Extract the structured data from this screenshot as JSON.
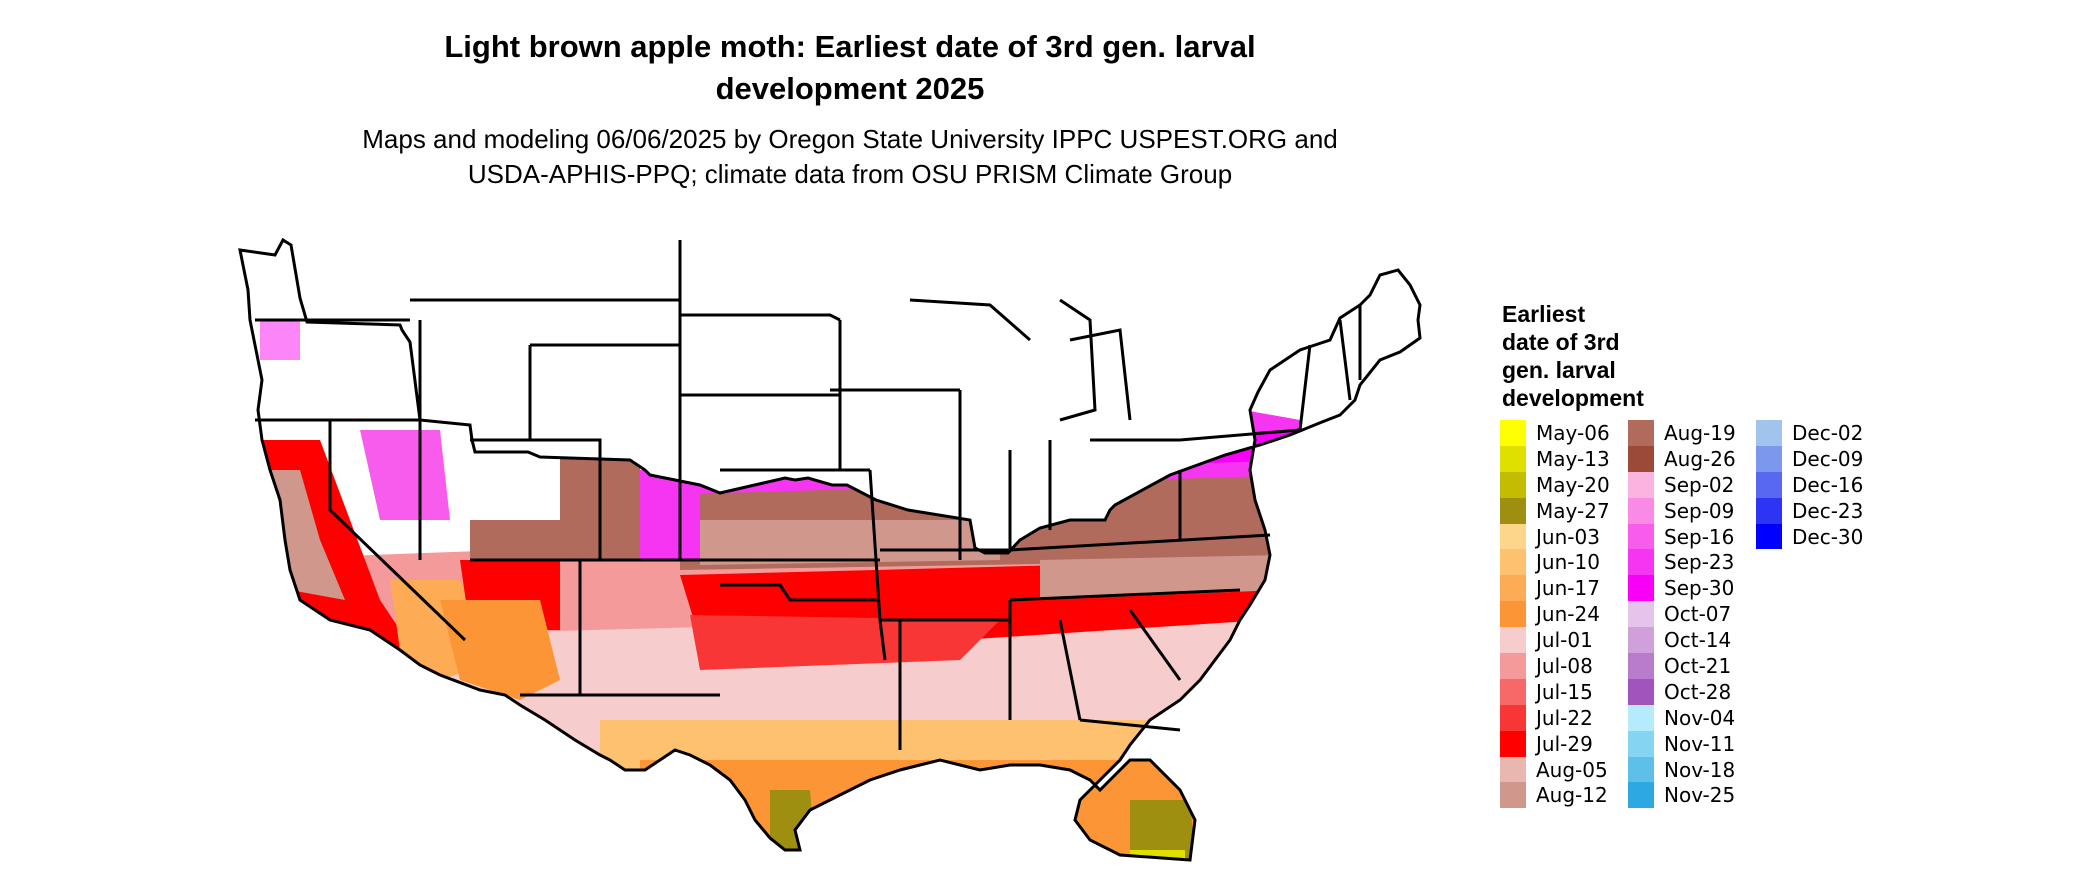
{
  "title_line1": "Light brown apple moth: Earliest date of 3rd gen. larval",
  "title_line2": "development 2025",
  "subtitle_line1": "Maps and modeling 06/06/2025 by Oregon State University IPPC USPEST.ORG and",
  "subtitle_line2": "USDA-APHIS-PPQ; climate data from OSU PRISM Climate Group",
  "legend": {
    "title_lines": [
      "Earliest",
      "date of 3rd",
      "gen. larval",
      "development"
    ],
    "columns": [
      [
        {
          "label": "May-06",
          "color": "#ffff00"
        },
        {
          "label": "May-13",
          "color": "#e0e000"
        },
        {
          "label": "May-20",
          "color": "#c4bc00"
        },
        {
          "label": "May-27",
          "color": "#9e8f10"
        },
        {
          "label": "Jun-03",
          "color": "#fdd68c"
        },
        {
          "label": "Jun-10",
          "color": "#fdc170"
        },
        {
          "label": "Jun-17",
          "color": "#fdab55"
        },
        {
          "label": "Jun-24",
          "color": "#fb9535"
        },
        {
          "label": "Jul-01",
          "color": "#f7cccc"
        },
        {
          "label": "Jul-08",
          "color": "#f59a9a"
        },
        {
          "label": "Jul-15",
          "color": "#f76868"
        },
        {
          "label": "Jul-22",
          "color": "#f93636"
        },
        {
          "label": "Jul-29",
          "color": "#fe0000"
        },
        {
          "label": "Aug-05",
          "color": "#e8b8b0"
        },
        {
          "label": "Aug-12",
          "color": "#d0988c"
        }
      ],
      [
        {
          "label": "Aug-19",
          "color": "#b06b5c"
        },
        {
          "label": "Aug-26",
          "color": "#9a4a36"
        },
        {
          "label": "Sep-02",
          "color": "#fbb4e0"
        },
        {
          "label": "Sep-09",
          "color": "#f98ae6"
        },
        {
          "label": "Sep-16",
          "color": "#f75cec"
        },
        {
          "label": "Sep-23",
          "color": "#f635f2"
        },
        {
          "label": "Sep-30",
          "color": "#f800f8"
        },
        {
          "label": "Oct-07",
          "color": "#e4c4ea"
        },
        {
          "label": "Oct-14",
          "color": "#cfa0da"
        },
        {
          "label": "Oct-21",
          "color": "#b97bcb"
        },
        {
          "label": "Oct-28",
          "color": "#a054bc"
        },
        {
          "label": "Nov-04",
          "color": "#b5ecfb"
        },
        {
          "label": "Nov-11",
          "color": "#85d4f2"
        },
        {
          "label": "Nov-18",
          "color": "#5ebfe8"
        },
        {
          "label": "Nov-25",
          "color": "#2ea8e0"
        }
      ],
      [
        {
          "label": "Dec-02",
          "color": "#a0c4ec"
        },
        {
          "label": "Dec-09",
          "color": "#7b98ee"
        },
        {
          "label": "Dec-16",
          "color": "#5868f0"
        },
        {
          "label": "Dec-23",
          "color": "#2e34f4"
        },
        {
          "label": "Dec-30",
          "color": "#0000ff"
        }
      ]
    ]
  },
  "colors": {
    "state_border": "#000000",
    "background": "#ffffff"
  }
}
